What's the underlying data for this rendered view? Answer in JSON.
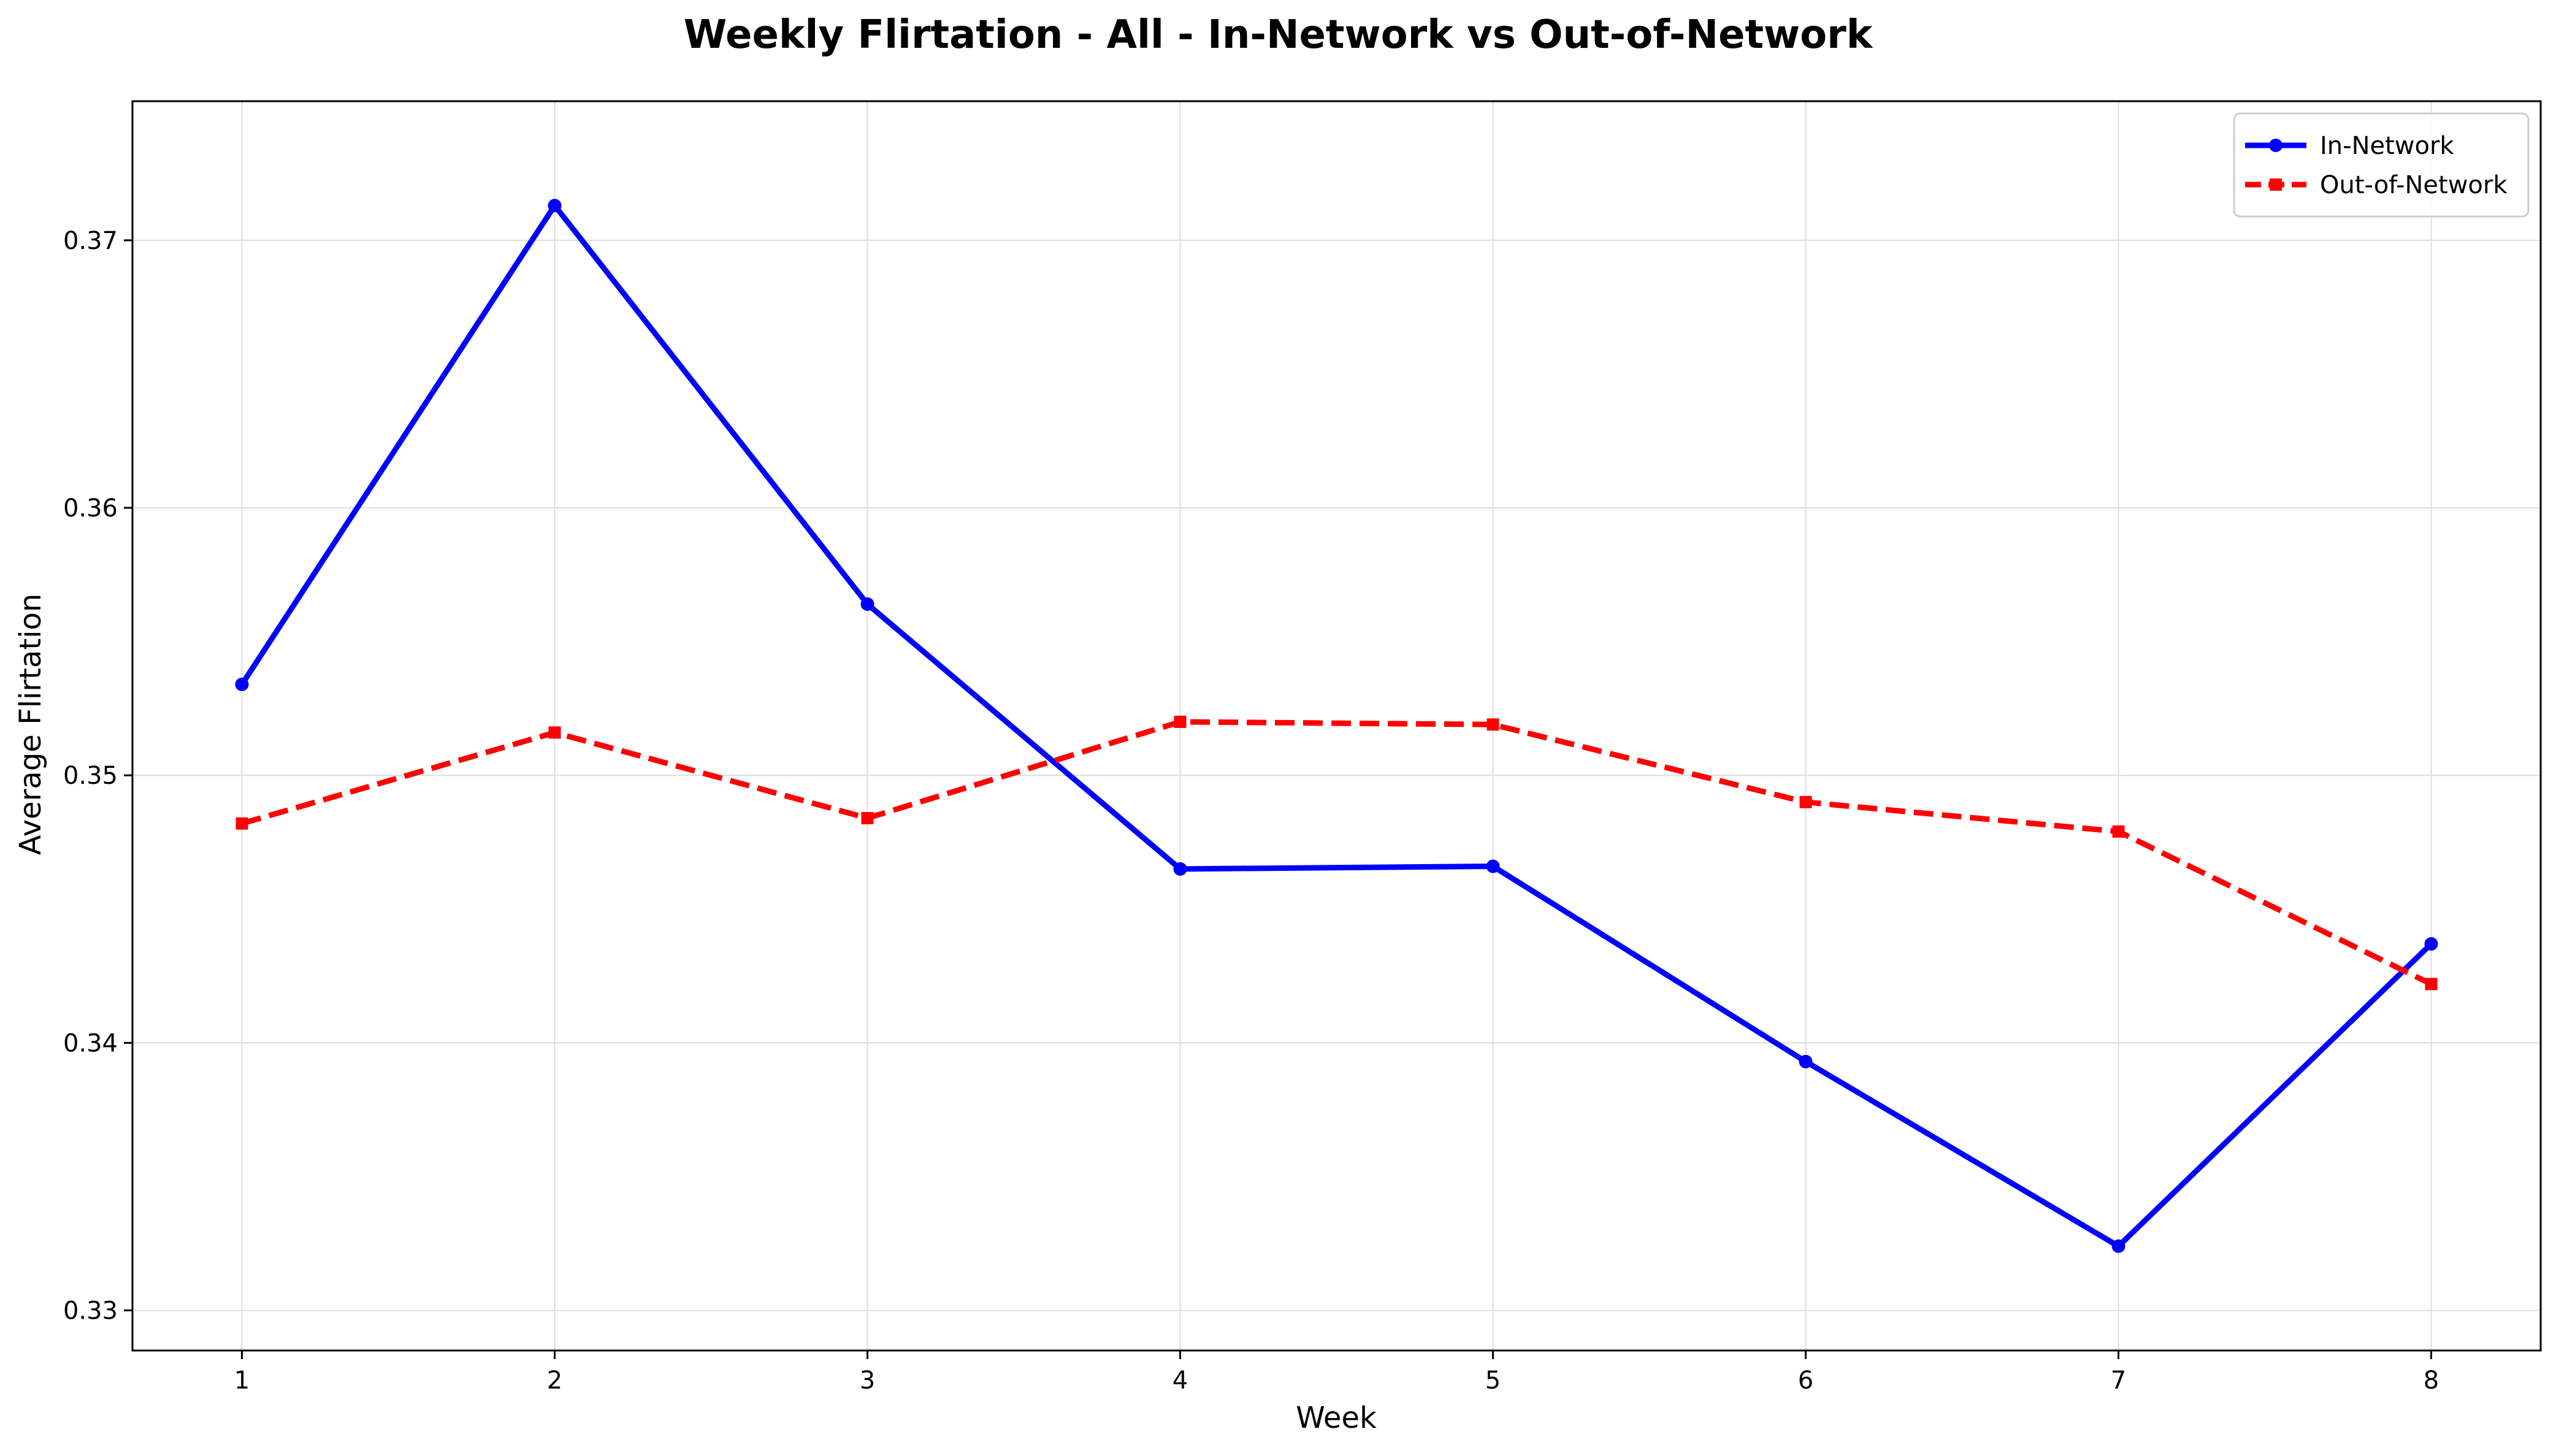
{
  "chart_data": {
    "type": "line",
    "title": "Weekly Flirtation - All - In-Network vs Out-of-Network",
    "xlabel": "Week",
    "ylabel": "Average Flirtation",
    "x": [
      1,
      2,
      3,
      4,
      5,
      6,
      7,
      8
    ],
    "xlim": [
      0.65,
      8.35
    ],
    "ylim": [
      0.3285,
      0.3752
    ],
    "yticks": [
      "0.33",
      "0.34",
      "0.35",
      "0.36",
      "0.37"
    ],
    "ytick_values": [
      0.33,
      0.34,
      0.35,
      0.36,
      0.37
    ],
    "xticks": [
      "1",
      "2",
      "3",
      "4",
      "5",
      "6",
      "7",
      "8"
    ],
    "grid": true,
    "legend_position": "top-right",
    "series": [
      {
        "name": "In-Network",
        "color": "#0000ff",
        "line_style": "solid",
        "marker": "circle",
        "values": [
          0.3534,
          0.3713,
          0.3564,
          0.3465,
          0.3466,
          0.3393,
          0.3324,
          0.3437
        ]
      },
      {
        "name": "Out-of-Network",
        "color": "#ff0000",
        "line_style": "dashed",
        "marker": "square",
        "values": [
          0.3482,
          0.3516,
          0.3484,
          0.352,
          0.3519,
          0.349,
          0.3479,
          0.3422
        ]
      }
    ]
  }
}
